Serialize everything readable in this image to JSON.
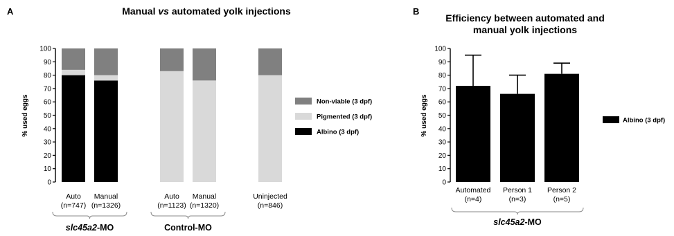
{
  "chart_data": [
    {
      "type": "bar",
      "stacked": true,
      "panel_letter": "A",
      "title": "Manual vs automated yolk injections",
      "title_parts": {
        "before": "Manual ",
        "italic": "vs",
        "after": " automated yolk injections"
      },
      "ylabel": "% used eggs",
      "ylim": [
        0,
        100
      ],
      "yticks": [
        0,
        10,
        20,
        30,
        40,
        50,
        60,
        70,
        80,
        90,
        100
      ],
      "categories": [
        "Auto",
        "Manual",
        "Auto",
        "Manual",
        "Uninjected"
      ],
      "category_sublabels": [
        "(n=747)",
        "(n=1326)",
        "(n=1123)",
        "(n=1320)",
        "(n=846)"
      ],
      "series": [
        {
          "name": "Albino (3 dpf)",
          "color": "#000000",
          "values": [
            80,
            76,
            0,
            0,
            0
          ]
        },
        {
          "name": "Pigmented (3 dpf)",
          "color": "#d9d9d9",
          "values": [
            4,
            4,
            83,
            76,
            80
          ]
        },
        {
          "name": "Non-viable (3 dpf)",
          "color": "#808080",
          "values": [
            16,
            20,
            17,
            24,
            20
          ]
        }
      ],
      "groups": [
        {
          "label_italic": "slc45a2",
          "label_rest": "-MO",
          "categories": [
            0,
            1
          ]
        },
        {
          "label_italic": "",
          "label_rest": "Control-MO",
          "categories": [
            2,
            3
          ]
        }
      ],
      "legend_position": "right",
      "grid": false
    },
    {
      "type": "bar",
      "panel_letter": "B",
      "title": "Efficiency between automated and manual yolk injections",
      "title_lines": [
        "Efficiency between automated and",
        "manual yolk injections"
      ],
      "ylabel": "% used eggs",
      "ylim": [
        0,
        100
      ],
      "yticks": [
        0,
        10,
        20,
        30,
        40,
        50,
        60,
        70,
        80,
        90,
        100
      ],
      "categories": [
        "Automated",
        "Person 1",
        "Person 2"
      ],
      "category_sublabels": [
        "(n=4)",
        "(n=3)",
        "(n=5)"
      ],
      "series": [
        {
          "name": "Albino (3 dpf)",
          "color": "#000000",
          "values": [
            72,
            66,
            81
          ],
          "error_upper": [
            95,
            80,
            89
          ]
        }
      ],
      "groups": [
        {
          "label_italic": "slc45a2",
          "label_rest": "-MO",
          "categories": [
            0,
            1,
            2
          ]
        }
      ],
      "legend_position": "right",
      "grid": false
    }
  ]
}
